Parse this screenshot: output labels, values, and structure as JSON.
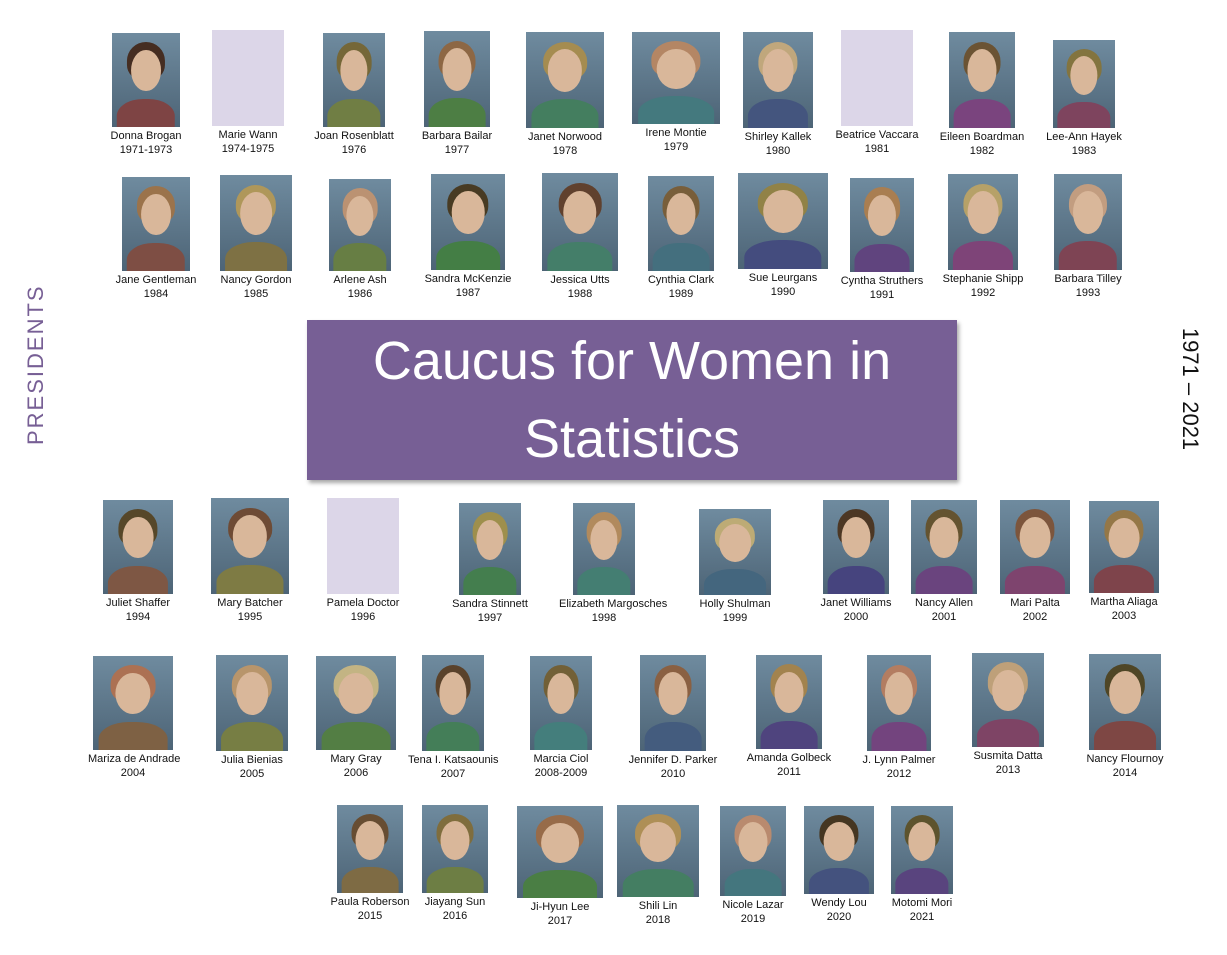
{
  "banner": {
    "title": "Caucus for Women in Statistics"
  },
  "side_label": "PRESIDENTS",
  "date_range": "1971 – 2021",
  "presidents": [
    {
      "name": "Donna Brogan",
      "years": "1971-1973"
    },
    {
      "name": "Marie Wann",
      "years": "1974-1975",
      "photo": "placeholder"
    },
    {
      "name": "Joan Rosenblatt",
      "years": "1976"
    },
    {
      "name": "Barbara Bailar",
      "years": "1977"
    },
    {
      "name": "Janet Norwood",
      "years": "1978"
    },
    {
      "name": "Irene Montie",
      "years": "1979"
    },
    {
      "name": "Shirley Kallek",
      "years": "1980"
    },
    {
      "name": "Beatrice Vaccara",
      "years": "1981",
      "photo": "placeholder"
    },
    {
      "name": "Eileen Boardman",
      "years": "1982"
    },
    {
      "name": "Lee-Ann Hayek",
      "years": "1983"
    },
    {
      "name": "Jane Gentleman",
      "years": "1984"
    },
    {
      "name": "Nancy Gordon",
      "years": "1985"
    },
    {
      "name": "Arlene Ash",
      "years": "1986"
    },
    {
      "name": "Sandra McKenzie",
      "years": "1987"
    },
    {
      "name": "Jessica Utts",
      "years": "1988"
    },
    {
      "name": "Cynthia Clark",
      "years": "1989"
    },
    {
      "name": "Sue Leurgans",
      "years": "1990"
    },
    {
      "name": "Cyntha Struthers",
      "years": "1991"
    },
    {
      "name": "Stephanie Shipp",
      "years": "1992"
    },
    {
      "name": "Barbara Tilley",
      "years": "1993"
    },
    {
      "name": "Juliet Shaffer",
      "years": "1994"
    },
    {
      "name": "Mary Batcher",
      "years": "1995"
    },
    {
      "name": "Pamela Doctor",
      "years": "1996",
      "photo": "placeholder"
    },
    {
      "name": "Sandra Stinnett",
      "years": "1997"
    },
    {
      "name": "Elizabeth Margosches",
      "years": "1998"
    },
    {
      "name": "Holly Shulman",
      "years": "1999"
    },
    {
      "name": "Janet Williams",
      "years": "2000"
    },
    {
      "name": "Nancy Allen",
      "years": "2001"
    },
    {
      "name": "Mari Palta",
      "years": "2002"
    },
    {
      "name": "Martha Aliaga",
      "years": "2003"
    },
    {
      "name": "Mariza de Andrade",
      "years": "2004"
    },
    {
      "name": "Julia Bienias",
      "years": "2005"
    },
    {
      "name": "Mary Gray",
      "years": "2006"
    },
    {
      "name": "Tena I. Katsaounis",
      "years": "2007"
    },
    {
      "name": "Marcia Ciol",
      "years": "2008-2009"
    },
    {
      "name": "Jennifer D. Parker",
      "years": "2010"
    },
    {
      "name": "Amanda Golbeck",
      "years": "2011"
    },
    {
      "name": "J. Lynn Palmer",
      "years": "2012"
    },
    {
      "name": "Susmita Datta",
      "years": "2013"
    },
    {
      "name": "Nancy Flournoy",
      "years": "2014"
    },
    {
      "name": "Paula Roberson",
      "years": "2015"
    },
    {
      "name": "Jiayang Sun",
      "years": "2016"
    },
    {
      "name": "Ji-Hyun Lee",
      "years": "2017"
    },
    {
      "name": "Shili Lin",
      "years": "2018"
    },
    {
      "name": "Nicole Lazar",
      "years": "2019"
    },
    {
      "name": "Wendy Lou",
      "years": "2020"
    },
    {
      "name": "Motomi Mori",
      "years": "2021"
    }
  ],
  "colors": {
    "accent": "#775f95",
    "placeholder": "#dcd6e8",
    "banner_text": "#ffffff"
  }
}
